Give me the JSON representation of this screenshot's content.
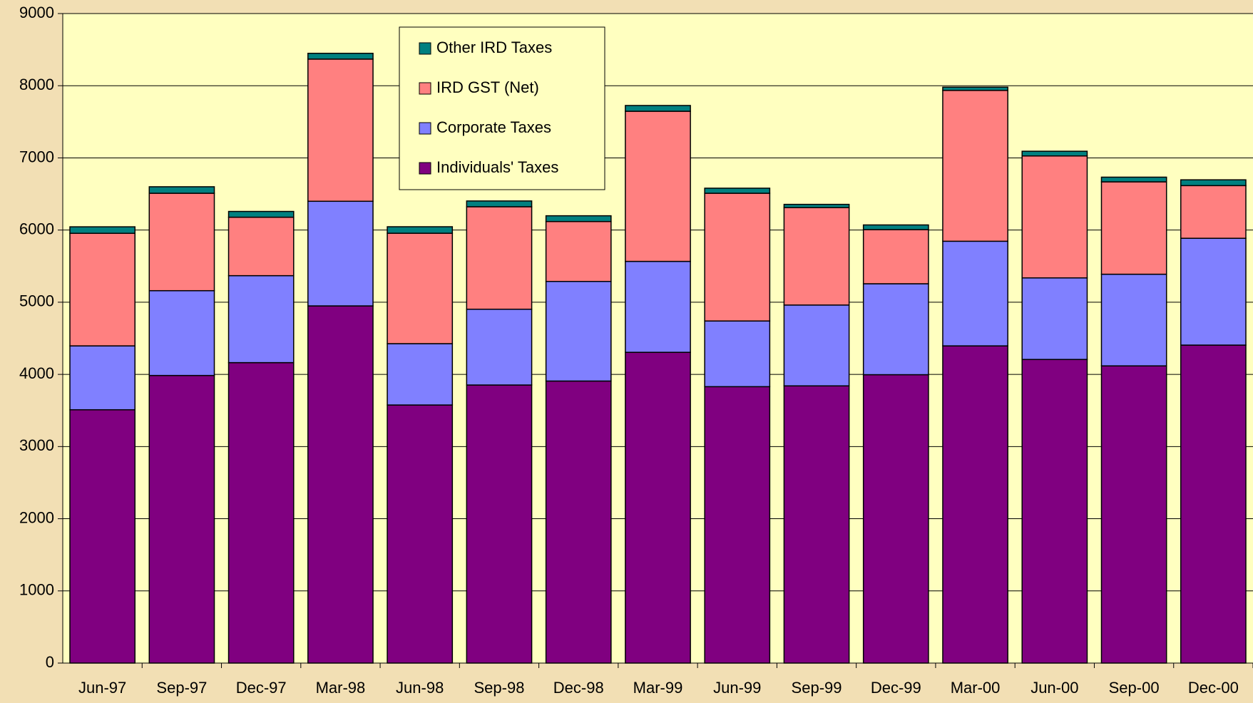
{
  "chart_data": {
    "type": "stacked_bar",
    "categories": [
      "Jun-97",
      "Sep-97",
      "Dec-97",
      "Mar-98",
      "Jun-98",
      "Sep-98",
      "Dec-98",
      "Mar-99",
      "Jun-99",
      "Sep-99",
      "Dec-99",
      "Mar-00",
      "Jun-00",
      "Sep-00",
      "Dec-00"
    ],
    "series": [
      {
        "name": "Individuals' Taxes",
        "color": "#800080",
        "values": [
          3510,
          3985,
          4163,
          4949,
          3576,
          3853,
          3908,
          4306,
          3830,
          3841,
          3996,
          4395,
          4207,
          4118,
          4406
        ]
      },
      {
        "name": "Corporate Taxes",
        "color": "#8080ff",
        "values": [
          885,
          1175,
          1205,
          1450,
          850,
          1050,
          1380,
          1260,
          910,
          1120,
          1260,
          1450,
          1130,
          1270,
          1480
        ]
      },
      {
        "name": "IRD GST (Net)",
        "color": "#ff8080",
        "values": [
          1560,
          1350,
          810,
          1970,
          1530,
          1420,
          830,
          2080,
          1770,
          1350,
          750,
          2090,
          1690,
          1280,
          730
        ]
      },
      {
        "name": "Other IRD Taxes",
        "color": "#008080",
        "values": [
          90,
          90,
          80,
          80,
          90,
          80,
          80,
          80,
          70,
          45,
          65,
          45,
          65,
          65,
          80
        ]
      }
    ],
    "ylim": [
      0,
      9000
    ],
    "yticks": [
      0,
      1000,
      2000,
      3000,
      4000,
      5000,
      6000,
      7000,
      8000,
      9000
    ],
    "grid": true
  }
}
